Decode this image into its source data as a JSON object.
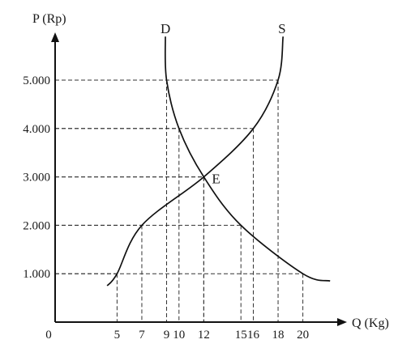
{
  "chart_data": {
    "type": "line",
    "xlabel": "Q (Kg)",
    "ylabel": "P (Rp)",
    "origin_label": "0",
    "xlim": [
      0,
      22
    ],
    "ylim": [
      0,
      5500
    ],
    "x_ticks": [
      {
        "value": 5,
        "label": "5"
      },
      {
        "value": 7,
        "label": "7"
      },
      {
        "value": 9,
        "label": "9"
      },
      {
        "value": 10,
        "label": "10"
      },
      {
        "value": 12,
        "label": "12"
      },
      {
        "value": 15,
        "label": "15"
      },
      {
        "value": 16,
        "label": "16"
      },
      {
        "value": 18,
        "label": "18"
      },
      {
        "value": 20,
        "label": "20"
      }
    ],
    "y_ticks": [
      {
        "value": 1000,
        "label": "1.000"
      },
      {
        "value": 2000,
        "label": "2.000"
      },
      {
        "value": 3000,
        "label": "3.000"
      },
      {
        "value": 4000,
        "label": "4.000"
      },
      {
        "value": 5000,
        "label": "5.000"
      }
    ],
    "series": [
      {
        "name": "D",
        "points": [
          [
            9,
            5000
          ],
          [
            10,
            4000
          ],
          [
            12,
            3000
          ],
          [
            15,
            2000
          ],
          [
            20,
            1000
          ]
        ]
      },
      {
        "name": "S",
        "points": [
          [
            5,
            1000
          ],
          [
            7,
            2000
          ],
          [
            12,
            3000
          ],
          [
            16,
            4000
          ],
          [
            18,
            5000
          ]
        ]
      }
    ],
    "equilibrium": {
      "label": "E",
      "x": 12,
      "y": 3000
    },
    "grid": "dashed guide lines from points to axes"
  }
}
